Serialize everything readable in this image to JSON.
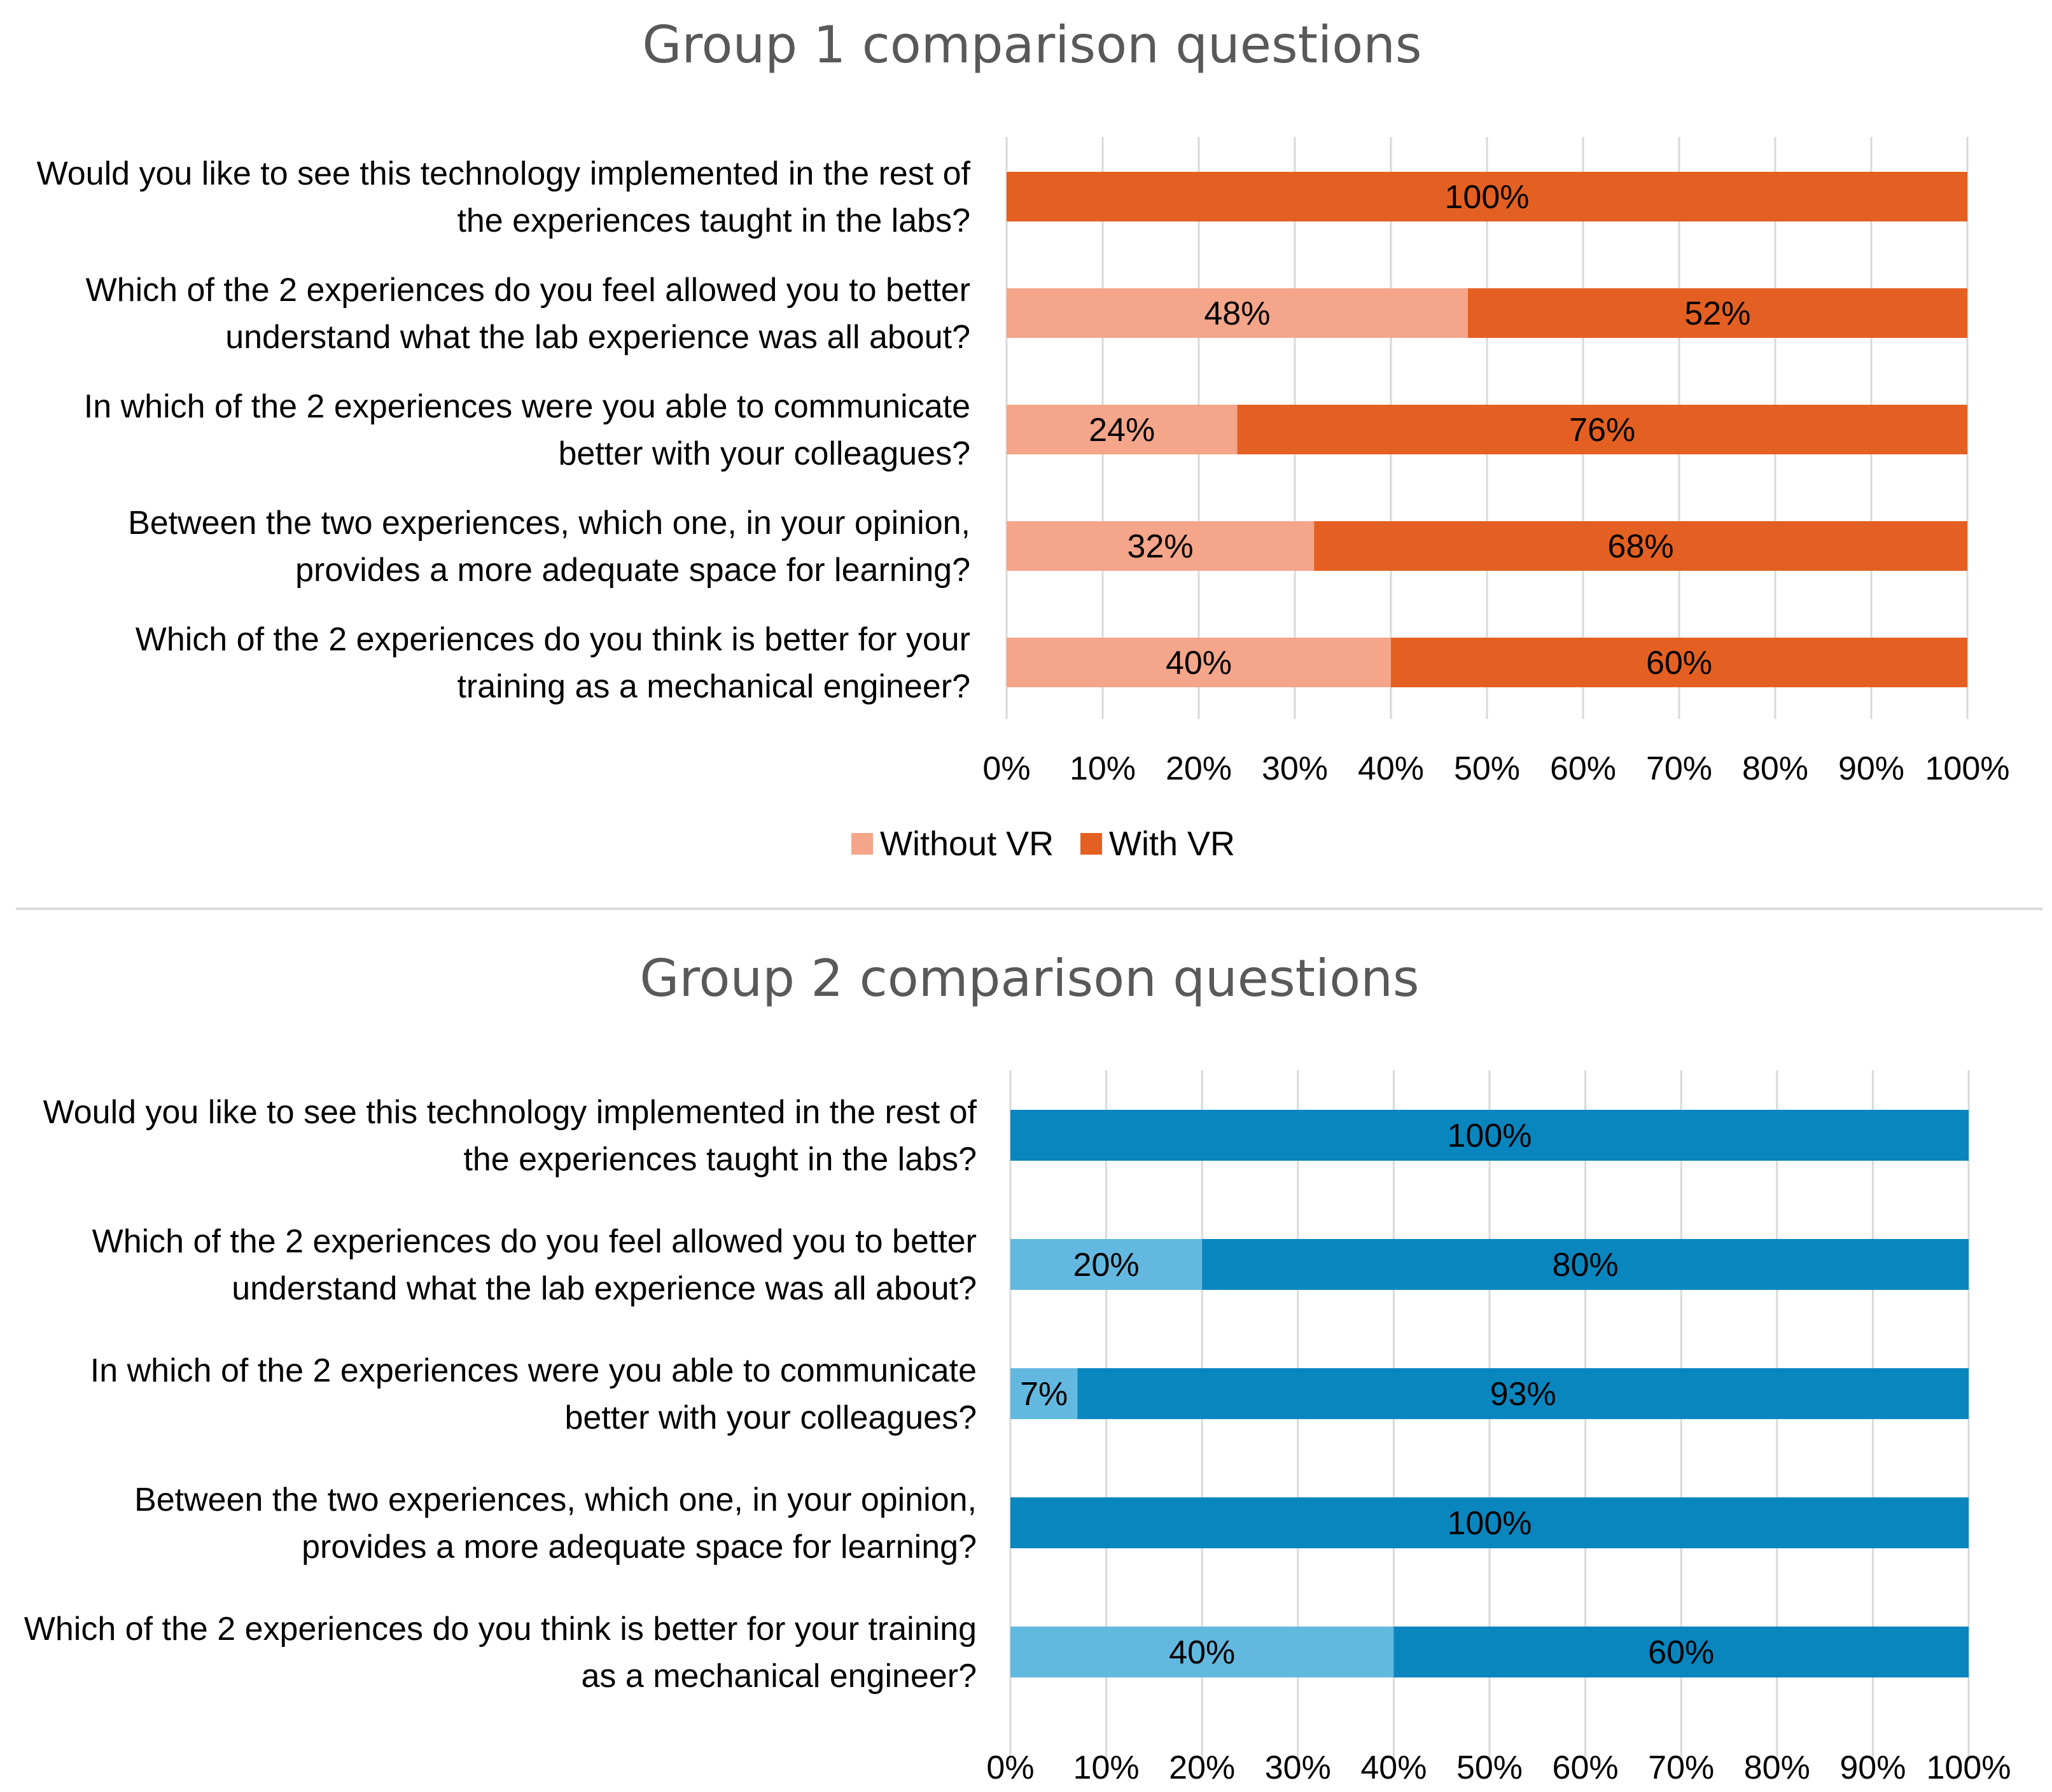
{
  "chart_data": [
    {
      "type": "bar",
      "orientation": "horizontal",
      "stacked": "100%",
      "title": "Group 1 comparison questions",
      "categories": [
        "Would you like to see this technology implemented in the rest of the experiences taught in the labs?",
        "Which of the 2 experiences do you feel allowed you to better understand what the lab experience was all about?",
        "In which of the 2 experiences were you able to communicate better with your colleagues?",
        "Between the two experiences, which one, in your opinion, provides a more adequate space for learning?",
        "Which of the 2 experiences do you think is better for your training as a mechanical engineer?"
      ],
      "category_lines": [
        [
          "Would you like to see this technology implemented in the rest of",
          "the experiences taught in the labs?"
        ],
        [
          "Which of the 2 experiences do you feel allowed you to better",
          "understand what the lab experience was all about?"
        ],
        [
          "In which of the 2 experiences were you able to communicate",
          "better with your colleagues?"
        ],
        [
          "Between the two experiences, which one, in your opinion,",
          "provides a more adequate space for learning?"
        ],
        [
          "Which of the 2 experiences do you think is better for your",
          "training as a mechanical engineer?"
        ]
      ],
      "series": [
        {
          "name": "Without VR",
          "color": "#f4a58a",
          "values": [
            0,
            48,
            24,
            32,
            40
          ],
          "labels": [
            "",
            "48%",
            "24%",
            "32%",
            "40%"
          ]
        },
        {
          "name": "With VR",
          "color": "#e46022",
          "values": [
            100,
            52,
            76,
            68,
            60
          ],
          "labels": [
            "100%",
            "52%",
            "76%",
            "68%",
            "60%"
          ]
        }
      ],
      "xlim": [
        0,
        100
      ],
      "xticks": [
        "0%",
        "10%",
        "20%",
        "30%",
        "40%",
        "50%",
        "60%",
        "70%",
        "80%",
        "90%",
        "100%"
      ],
      "grid": true,
      "legend": {
        "position": "bottom",
        "entries": [
          "Without VR",
          "With VR"
        ]
      }
    },
    {
      "type": "bar",
      "orientation": "horizontal",
      "stacked": "100%",
      "title": "Group 2 comparison questions",
      "categories": [
        "Would you like to see this technology implemented in the rest of the experiences taught in the labs?",
        "Which of the 2 experiences do you feel allowed you to better understand what the lab experience was all about?",
        "In which of the 2 experiences were you able to communicate better with your colleagues?",
        "Between the two experiences, which one, in your opinion, provides a more adequate space for learning?",
        "Which of the 2 experiences do you think is better for your training as a mechanical engineer?"
      ],
      "category_lines": [
        [
          "Would you like to see this technology implemented in the rest of",
          "the experiences taught in the labs?"
        ],
        [
          "Which of the 2 experiences do you feel allowed you to better",
          "understand what the lab experience was all about?"
        ],
        [
          "In which of the 2 experiences were you able to communicate",
          "better with your colleagues?"
        ],
        [
          "Between the two experiences, which one, in your opinion,",
          "provides a more adequate space for learning?"
        ],
        [
          "Which of the 2 experiences do you think is better for your training",
          "as a mechanical engineer?"
        ]
      ],
      "series": [
        {
          "name": "Without VR",
          "color": "#63b8e0",
          "values": [
            0,
            20,
            7,
            0,
            40
          ],
          "labels": [
            "",
            "20%",
            "7%",
            "",
            "40%"
          ]
        },
        {
          "name": "With VR",
          "color": "#0a86bf",
          "values": [
            100,
            80,
            93,
            100,
            60
          ],
          "labels": [
            "100%",
            "80%",
            "93%",
            "100%",
            "60%"
          ]
        }
      ],
      "xlim": [
        0,
        100
      ],
      "xticks": [
        "0%",
        "10%",
        "20%",
        "30%",
        "40%",
        "50%",
        "60%",
        "70%",
        "80%",
        "90%",
        "100%"
      ],
      "grid": true,
      "legend": null
    }
  ],
  "colors": {
    "gridline": "#d9d9d9",
    "separator": "#d9d9d9",
    "title": "#595959"
  }
}
